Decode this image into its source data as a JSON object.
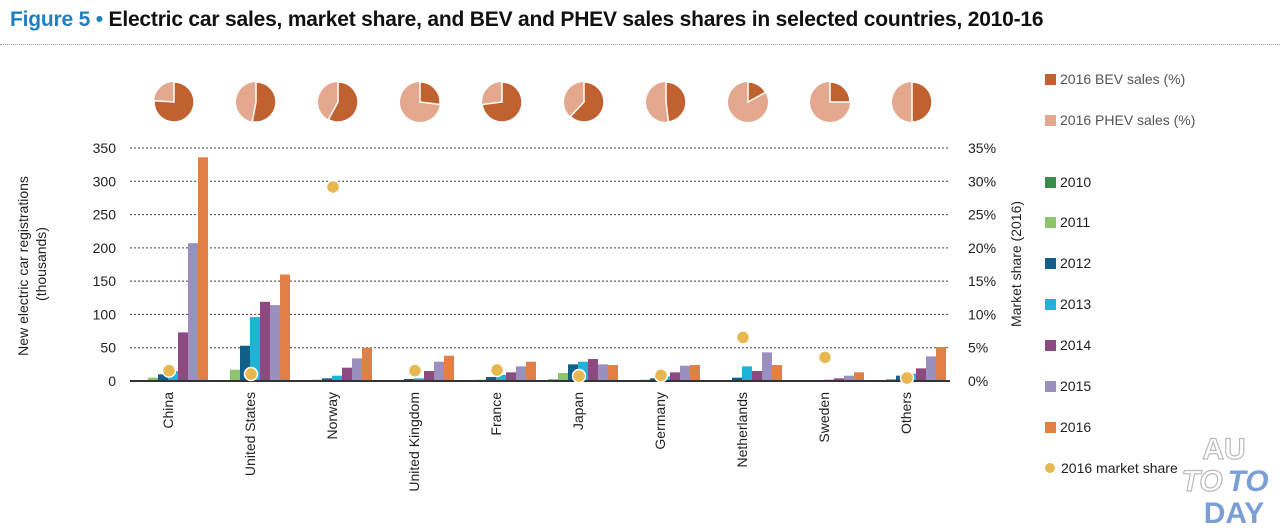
{
  "title": {
    "figure": "Figure 5 •",
    "text": "Electric car sales, market share, and BEV and PHEV sales shares in selected countries, 2010-16"
  },
  "colors": {
    "title_blue": "#1f7fc1",
    "bev": "#c0622f",
    "phev": "#e3a88e",
    "2010": "#3c8c4b",
    "2011": "#8cc56e",
    "2012": "#0f5f86",
    "2013": "#1db3d6",
    "2014": "#8d4a80",
    "2015": "#9a8fbf",
    "2016": "#e07f46",
    "market_share": "#e6b84f"
  },
  "watermark": {
    "line1": "AU",
    "line2a": "TO",
    "line2b": "TO",
    "line3": "DAY"
  },
  "chart_data": {
    "type": "bar",
    "title": "Electric car sales, market share, and BEV and PHEV sales shares in selected countries, 2010-16",
    "categories": [
      "China",
      "United States",
      "Norway",
      "United Kingdom",
      "France",
      "Japan",
      "Germany",
      "Netherlands",
      "Sweden",
      "Others"
    ],
    "ylabel": "New electric car registrations (thousands)",
    "ylim": [
      0,
      350
    ],
    "yticks": [
      "0",
      "50",
      "100",
      "150",
      "200",
      "250",
      "300",
      "350"
    ],
    "y2label": "Market share (2016)",
    "y2lim": [
      0,
      35
    ],
    "y2ticks": [
      "0%",
      "5%",
      "10%",
      "15%",
      "20%",
      "25%",
      "30%",
      "35%"
    ],
    "grid": true,
    "legend_position": "right",
    "series": [
      {
        "name": "2010",
        "values": [
          0.5,
          0.5,
          0.5,
          0.2,
          0.2,
          2.4,
          0.5,
          0.3,
          0.1,
          0.5
        ]
      },
      {
        "name": "2011",
        "values": [
          5,
          17,
          2,
          1,
          2,
          12,
          2,
          1,
          0.5,
          3
        ]
      },
      {
        "name": "2012",
        "values": [
          10,
          53,
          4,
          3,
          6,
          25,
          4,
          5,
          1,
          8
        ]
      },
      {
        "name": "2013",
        "values": [
          15,
          96,
          8,
          4,
          9,
          29,
          7,
          22,
          2,
          11
        ]
      },
      {
        "name": "2014",
        "values": [
          73,
          119,
          20,
          15,
          13,
          33,
          13,
          15,
          4,
          19
        ]
      },
      {
        "name": "2015",
        "values": [
          207,
          114,
          34,
          29,
          22,
          25,
          23,
          43,
          8,
          37
        ]
      },
      {
        "name": "2016",
        "values": [
          336,
          160,
          50,
          38,
          29,
          24,
          24,
          24,
          13,
          51
        ]
      }
    ],
    "market_share_series": {
      "name": "2016 market share",
      "values_pct": [
        1.4,
        0.9,
        29.0,
        1.4,
        1.5,
        0.6,
        0.7,
        6.4,
        3.4,
        0.3
      ]
    },
    "pie_series": {
      "bev_name": "2016 BEV sales (%)",
      "phev_name": "2016 PHEV sales (%)",
      "bev_pct": [
        76,
        53,
        58,
        27,
        73,
        62,
        48,
        17,
        25,
        50
      ]
    }
  }
}
